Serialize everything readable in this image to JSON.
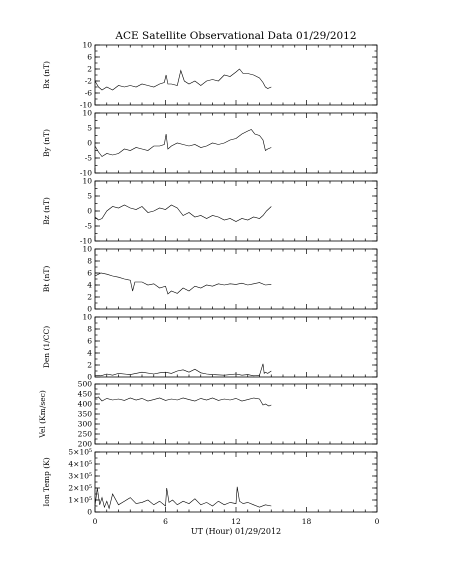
{
  "title": "ACE Satellite Observational Data   01/29/2012",
  "xlabel": "UT (Hour)   01/29/2012",
  "chart_data": [
    {
      "type": "line",
      "name": "Bx",
      "ylabel": "Bx (nT)",
      "xlim": [
        0,
        24
      ],
      "ylim": [
        -10,
        10
      ],
      "yticks": [
        "10",
        "6",
        "2",
        "-2",
        "-6",
        "-10"
      ],
      "ytick_values": [
        10,
        6,
        2,
        -2,
        -6,
        -10
      ],
      "grid": false,
      "x": [
        0,
        0.3,
        0.6,
        1,
        1.5,
        2,
        2.5,
        3,
        3.5,
        4,
        4.5,
        5,
        5.5,
        5.9,
        6.05,
        6.2,
        6.5,
        7,
        7.3,
        7.6,
        8,
        8.5,
        9,
        9.5,
        10,
        10.5,
        11,
        11.5,
        12,
        12.3,
        12.6,
        13,
        13.5,
        14,
        14.3,
        14.5,
        14.7,
        15
      ],
      "values": [
        -2,
        -4,
        -5,
        -4,
        -5,
        -3.5,
        -4,
        -3.5,
        -4,
        -3,
        -3.5,
        -4,
        -3,
        -2.5,
        0,
        -3,
        -3,
        -3.5,
        1.5,
        -2,
        -3,
        -2,
        -3.5,
        -2,
        -1.5,
        -2,
        0,
        -0.5,
        1,
        2,
        0.5,
        0.5,
        0,
        -1,
        -2.5,
        -4,
        -4.5,
        -4
      ]
    },
    {
      "type": "line",
      "name": "By",
      "ylabel": "By (nT)",
      "xlim": [
        0,
        24
      ],
      "ylim": [
        -10,
        10
      ],
      "yticks": [
        "10",
        "5",
        "0",
        "-5",
        "-10"
      ],
      "ytick_values": [
        10,
        5,
        0,
        -5,
        -10
      ],
      "grid": false,
      "x": [
        0,
        0.3,
        0.6,
        1,
        1.5,
        2,
        2.5,
        3,
        3.5,
        4,
        4.5,
        5,
        5.5,
        5.9,
        6.05,
        6.2,
        6.5,
        7,
        7.5,
        8,
        8.5,
        9,
        9.5,
        10,
        10.5,
        11,
        11.5,
        12,
        12.5,
        13,
        13.3,
        13.6,
        14,
        14.3,
        14.5,
        14.7,
        15
      ],
      "values": [
        -1,
        -3,
        -4.5,
        -3.5,
        -4,
        -3.5,
        -2,
        -2.5,
        -1.5,
        -2,
        -2.5,
        -1,
        -1,
        -0.5,
        3,
        -2,
        -1,
        0,
        -0.5,
        -1,
        -0.5,
        -1.5,
        -1,
        0,
        -0.5,
        0,
        1,
        1.5,
        3,
        4,
        4.5,
        3,
        2.5,
        1,
        -2.5,
        -2,
        -1.5
      ]
    },
    {
      "type": "line",
      "name": "Bz",
      "ylabel": "Bz (nT)",
      "xlim": [
        0,
        24
      ],
      "ylim": [
        -10,
        10
      ],
      "yticks": [
        "10",
        "5",
        "0",
        "-5",
        "-10"
      ],
      "ytick_values": [
        10,
        5,
        0,
        -5,
        -10
      ],
      "grid": false,
      "x": [
        0,
        0.3,
        0.6,
        1,
        1.5,
        2,
        2.5,
        3,
        3.5,
        4,
        4.5,
        5,
        5.5,
        6,
        6.5,
        7,
        7.5,
        8,
        8.5,
        9,
        9.5,
        10,
        10.5,
        11,
        11.5,
        12,
        12.5,
        13,
        13.5,
        14,
        14.3,
        14.6,
        15
      ],
      "values": [
        -2,
        -3,
        -2.5,
        0,
        1.5,
        1,
        2,
        1,
        0.5,
        1.5,
        -0.5,
        0,
        1,
        0.5,
        2,
        1,
        -1.5,
        -0.5,
        -2,
        -1.5,
        -2.5,
        -1.5,
        -2,
        -3,
        -2.5,
        -3.5,
        -2.5,
        -3,
        -2,
        -2.5,
        -1.5,
        0,
        1.5
      ]
    },
    {
      "type": "line",
      "name": "Bt",
      "ylabel": "Bt (nT)",
      "xlim": [
        0,
        24
      ],
      "ylim": [
        0,
        10
      ],
      "yticks": [
        "10",
        "8",
        "6",
        "4",
        "2",
        "0"
      ],
      "ytick_values": [
        10,
        8,
        6,
        4,
        2,
        0
      ],
      "grid": false,
      "x": [
        0,
        0.5,
        1,
        1.5,
        2,
        2.5,
        3,
        3.2,
        3.4,
        4,
        4.5,
        5,
        5.5,
        6,
        6.2,
        6.5,
        7,
        7.5,
        8,
        8.5,
        9,
        9.5,
        10,
        10.5,
        11,
        11.5,
        12,
        12.5,
        13,
        13.5,
        14,
        14.5,
        15
      ],
      "values": [
        5.5,
        6,
        5.8,
        5.5,
        5.3,
        5,
        4.8,
        3,
        4.5,
        4.5,
        4,
        4.2,
        3.5,
        3.8,
        2.5,
        3,
        2.6,
        3.5,
        3,
        3.8,
        3.5,
        4,
        3.8,
        4.2,
        4,
        4.2,
        4.1,
        4.3,
        4,
        4.2,
        4.4,
        4,
        4.1
      ]
    },
    {
      "type": "line",
      "name": "Den",
      "ylabel": "Den (1/CC)",
      "xlim": [
        0,
        24
      ],
      "ylim": [
        0,
        10
      ],
      "yticks": [
        "10",
        "8",
        "6",
        "4",
        "2",
        "0"
      ],
      "ytick_values": [
        10,
        8,
        6,
        4,
        2,
        0
      ],
      "grid": false,
      "x": [
        0,
        0.5,
        1,
        1.5,
        2,
        3,
        4,
        5,
        5.5,
        6,
        6.5,
        7,
        7.5,
        8,
        8.5,
        9,
        9.5,
        10,
        11,
        12,
        12.5,
        13,
        13.5,
        14,
        14.3,
        14.4,
        14.5,
        14.7,
        15
      ],
      "values": [
        0.3,
        0.2,
        0.5,
        0.3,
        0.6,
        0.4,
        0.8,
        0.5,
        0.7,
        0.8,
        0.6,
        1.0,
        1.2,
        0.8,
        1.3,
        0.7,
        0.5,
        0.4,
        0.3,
        0.5,
        0.3,
        0.4,
        0.2,
        0.3,
        2.2,
        0.6,
        0.8,
        0.6,
        1.0
      ]
    },
    {
      "type": "line",
      "name": "Vel",
      "ylabel": "Vel (Km/sec)",
      "xlim": [
        0,
        24
      ],
      "ylim": [
        200,
        500
      ],
      "yticks": [
        "500",
        "450",
        "400",
        "350",
        "300",
        "250",
        "200"
      ],
      "ytick_values": [
        500,
        450,
        400,
        350,
        300,
        250,
        200
      ],
      "grid": false,
      "x": [
        0,
        0.3,
        0.6,
        1,
        1.5,
        2,
        2.5,
        3,
        3.5,
        4,
        4.5,
        5,
        5.5,
        6,
        6.5,
        7,
        7.5,
        8,
        8.5,
        9,
        9.5,
        10,
        10.5,
        11,
        11.5,
        12,
        12.5,
        13,
        13.5,
        14,
        14.3,
        14.5,
        14.8,
        15
      ],
      "values": [
        430,
        435,
        415,
        428,
        420,
        425,
        418,
        430,
        420,
        428,
        415,
        422,
        430,
        418,
        425,
        420,
        430,
        422,
        415,
        428,
        420,
        430,
        418,
        425,
        420,
        428,
        415,
        422,
        430,
        425,
        395,
        400,
        390,
        395
      ]
    },
    {
      "type": "line",
      "name": "Ion Temp",
      "ylabel": "Ion Temp (K)",
      "xlim": [
        0,
        24
      ],
      "ylim": [
        0,
        500000
      ],
      "yticks": [
        "5×10⁵",
        "4×10⁵",
        "3×10⁵",
        "2×10⁵",
        "1×10⁵",
        "0"
      ],
      "ytick_values": [
        500000,
        400000,
        300000,
        200000,
        100000,
        0
      ],
      "grid": false,
      "x": [
        0,
        0.2,
        0.4,
        0.6,
        0.8,
        1,
        1.2,
        1.5,
        2,
        2.5,
        3,
        3.5,
        4,
        4.5,
        5,
        5.5,
        6,
        6.1,
        6.3,
        6.6,
        7,
        7.5,
        8,
        8.5,
        9,
        9.5,
        10,
        10.5,
        11,
        11.5,
        12,
        12.1,
        12.3,
        12.6,
        13,
        13.5,
        14,
        14.5,
        15
      ],
      "values": [
        50000,
        200000,
        60000,
        120000,
        40000,
        90000,
        30000,
        150000,
        60000,
        90000,
        120000,
        70000,
        80000,
        100000,
        60000,
        90000,
        50000,
        200000,
        80000,
        100000,
        60000,
        90000,
        70000,
        110000,
        60000,
        80000,
        50000,
        90000,
        60000,
        80000,
        70000,
        210000,
        90000,
        70000,
        80000,
        60000,
        40000,
        60000,
        50000
      ]
    }
  ],
  "xticks": [
    "0",
    "6",
    "12",
    "18",
    "0"
  ],
  "xtick_values": [
    0,
    6,
    12,
    18,
    24
  ]
}
